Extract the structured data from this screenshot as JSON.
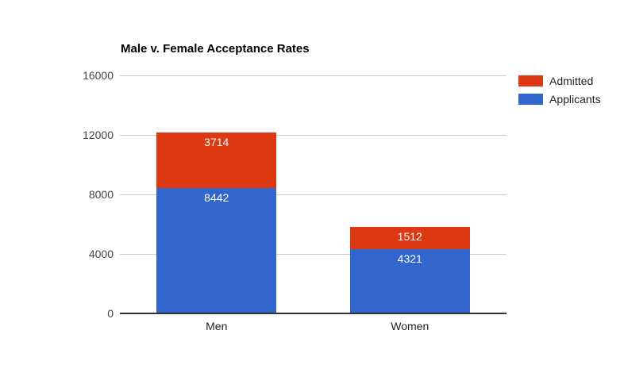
{
  "chart_data": {
    "type": "bar",
    "stacked": true,
    "title": "Male v. Female Acceptance Rates",
    "categories": [
      "Men",
      "Women"
    ],
    "series": [
      {
        "name": "Admitted",
        "color": "#dc3912",
        "values": [
          3714,
          1512
        ]
      },
      {
        "name": "Applicants",
        "color": "#3366cc",
        "values": [
          8442,
          4321
        ]
      }
    ],
    "xlabel": "",
    "ylabel": "",
    "ylim": [
      0,
      16000
    ],
    "yticks": [
      0,
      4000,
      8000,
      12000,
      16000
    ],
    "grid": true,
    "legend_position": "right",
    "value_labels_visible": true
  },
  "styles": {
    "background": "#ffffff",
    "title_color": "#000000",
    "gridline_color": "#cccccc",
    "baseline_color": "#333333",
    "ytick_color": "#444444",
    "xtick_color": "#222222",
    "legend_text_color": "#222222",
    "bar_label_color": "#ffffff"
  }
}
